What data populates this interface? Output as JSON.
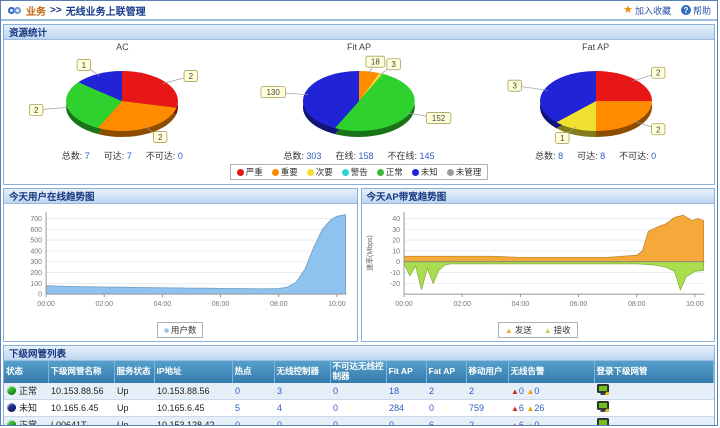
{
  "header": {
    "breadcrumb_root": "业务",
    "breadcrumb_sep": ">>",
    "page_title": "无线业务上联管理",
    "favorite_label": "加入收藏",
    "help_label": "帮助"
  },
  "resource_panel": {
    "title": "资源统计",
    "pies": [
      {
        "title": "AC",
        "slices": [
          {
            "value": 2,
            "status": "严重",
            "color": "#e81717"
          },
          {
            "value": 2,
            "status": "重要",
            "color": "#ff8c00"
          },
          {
            "value": 2,
            "status": "正常",
            "color": "#2ed12e"
          },
          {
            "value": 1,
            "status": "未知",
            "color": "#2024d6"
          }
        ],
        "stats": [
          {
            "k": "总数",
            "v": "7"
          },
          {
            "k": "可达",
            "v": "7"
          },
          {
            "k": "不可达",
            "v": "0"
          }
        ]
      },
      {
        "title": "Fit AP",
        "slices": [
          {
            "value": 18,
            "status": "重要",
            "color": "#ff8c00"
          },
          {
            "value": 3,
            "status": "次要",
            "color": "#f0e130"
          },
          {
            "value": 152,
            "status": "正常",
            "color": "#2ed12e"
          },
          {
            "value": 130,
            "status": "未知",
            "color": "#2024d6"
          }
        ],
        "stats": [
          {
            "k": "总数",
            "v": "303"
          },
          {
            "k": "在线",
            "v": "158"
          },
          {
            "k": "不在线",
            "v": "145"
          }
        ]
      },
      {
        "title": "Fat AP",
        "slices": [
          {
            "value": 2,
            "status": "严重",
            "color": "#e81717"
          },
          {
            "value": 2,
            "status": "重要",
            "color": "#ff8c00"
          },
          {
            "value": 1,
            "status": "次要",
            "color": "#f0e130"
          },
          {
            "value": 3,
            "status": "未知",
            "color": "#2024d6"
          }
        ],
        "stats": [
          {
            "k": "总数",
            "v": "8"
          },
          {
            "k": "可达",
            "v": "8"
          },
          {
            "k": "不可达",
            "v": "0"
          }
        ]
      }
    ],
    "legend": [
      {
        "label": "严重",
        "color": "#e81717"
      },
      {
        "label": "重要",
        "color": "#ff8c00"
      },
      {
        "label": "次要",
        "color": "#f0e130"
      },
      {
        "label": "警告",
        "color": "#30d5c8"
      },
      {
        "label": "正常",
        "color": "#3cb83c"
      },
      {
        "label": "未知",
        "color": "#2024d6"
      },
      {
        "label": "未管理",
        "color": "#9a9a9a"
      }
    ]
  },
  "chart_data": [
    {
      "type": "area",
      "title": "今天用户在线趋势图",
      "xlabel": "",
      "ylabel": "",
      "xlim": [
        0,
        10.33
      ],
      "ylim": [
        0,
        760
      ],
      "y_ticks": [
        0,
        100,
        200,
        300,
        400,
        500,
        600,
        700
      ],
      "x_tick_vals": [
        0,
        2,
        4,
        6,
        8,
        10
      ],
      "x_ticks": [
        "00:00",
        "02:00",
        "04:00",
        "06:00",
        "08:00",
        "10:00"
      ],
      "grid": true,
      "legend_position": "bottom",
      "series": [
        {
          "name": "用户数",
          "color": "#8fc3ef",
          "marker": "■",
          "x": [
            0,
            0.5,
            1,
            1.5,
            2,
            2.5,
            3,
            3.5,
            4,
            4.5,
            5,
            5.5,
            6,
            6.5,
            7,
            7.5,
            8,
            8.3,
            8.6,
            8.9,
            9.2,
            9.5,
            9.8,
            10,
            10.3
          ],
          "values": [
            78,
            74,
            70,
            68,
            66,
            64,
            62,
            60,
            58,
            57,
            56,
            55,
            53,
            52,
            50,
            49,
            52,
            65,
            110,
            230,
            430,
            600,
            690,
            720,
            735
          ]
        }
      ]
    },
    {
      "type": "area",
      "title": "今天AP带宽趋势图",
      "xlabel": "",
      "ylabel": "速率(Mbps)",
      "xlim": [
        0,
        10.33
      ],
      "ylim": [
        -30,
        46
      ],
      "y_ticks": [
        -20,
        -10,
        0,
        10,
        20,
        30,
        40
      ],
      "x_tick_vals": [
        0,
        2,
        4,
        6,
        8,
        10
      ],
      "x_ticks": [
        "00:00",
        "02:00",
        "04:00",
        "06:00",
        "08:00",
        "10:00"
      ],
      "grid": true,
      "legend_position": "bottom",
      "series": [
        {
          "name": "发送",
          "color": "#f5a93a",
          "marker": "▲",
          "x": [
            0,
            0.5,
            1,
            2,
            3,
            4,
            5,
            6,
            7,
            7.5,
            8,
            8.2,
            8.4,
            8.7,
            9,
            9.3,
            9.6,
            9.9,
            10.1,
            10.3
          ],
          "values": [
            5,
            5,
            5,
            5,
            5,
            4,
            4,
            4,
            4,
            5,
            6,
            10,
            28,
            32,
            35,
            41,
            43,
            38,
            40,
            38
          ]
        },
        {
          "name": "接收",
          "color": "#aade4f",
          "marker": "▲",
          "x": [
            0,
            0.2,
            0.4,
            0.6,
            0.8,
            1,
            1.2,
            1.4,
            1.6,
            2,
            3,
            4,
            5,
            6,
            7,
            8,
            8.6,
            9,
            9.3,
            9.5,
            9.7,
            10,
            10.3
          ],
          "values": [
            -2,
            -13,
            -4,
            -26,
            -6,
            -20,
            -8,
            -3,
            -2,
            -2,
            -2,
            -2,
            -2,
            -2,
            -2,
            -2,
            -3,
            -5,
            -9,
            -26,
            -14,
            -9,
            -8
          ]
        }
      ]
    }
  ],
  "table_panel": {
    "title": "下级网管列表",
    "columns": [
      "状态",
      "下级网管名称",
      "服务状态",
      "IP地址",
      "热点",
      "无线控制器",
      "不可达无线控制器",
      "Fit AP",
      "Fat AP",
      "移动用户",
      "无线告警",
      "登录下级网管"
    ],
    "rows": [
      {
        "status": "正常",
        "status_type": "normal",
        "name": "10.153.88.56",
        "service": "Up",
        "ip": "10.153.88.56",
        "hotspot": "0",
        "controllers": "3",
        "unreachable": "0",
        "fit_ap": "18",
        "fat_ap": "2",
        "mobile": "2",
        "alarm_major": "0",
        "alarm_minor": "0"
      },
      {
        "status": "未知",
        "status_type": "unknown",
        "name": "10.165.6.45",
        "service": "Up",
        "ip": "10.165.6.45",
        "hotspot": "5",
        "controllers": "4",
        "unreachable": "0",
        "fit_ap": "284",
        "fat_ap": "0",
        "mobile": "759",
        "alarm_major": "6",
        "alarm_minor": "26"
      },
      {
        "status": "正常",
        "status_type": "normal",
        "name": "L00641T",
        "service": "Up",
        "ip": "10.153.128.42",
        "hotspot": "0",
        "controllers": "0",
        "unreachable": "0",
        "fit_ap": "0",
        "fat_ap": "6",
        "mobile": "2",
        "alarm_major": "6",
        "alarm_minor": "0"
      }
    ],
    "status_colors": {
      "normal": "#2eb82e",
      "unknown": "#1a2f8f"
    }
  }
}
